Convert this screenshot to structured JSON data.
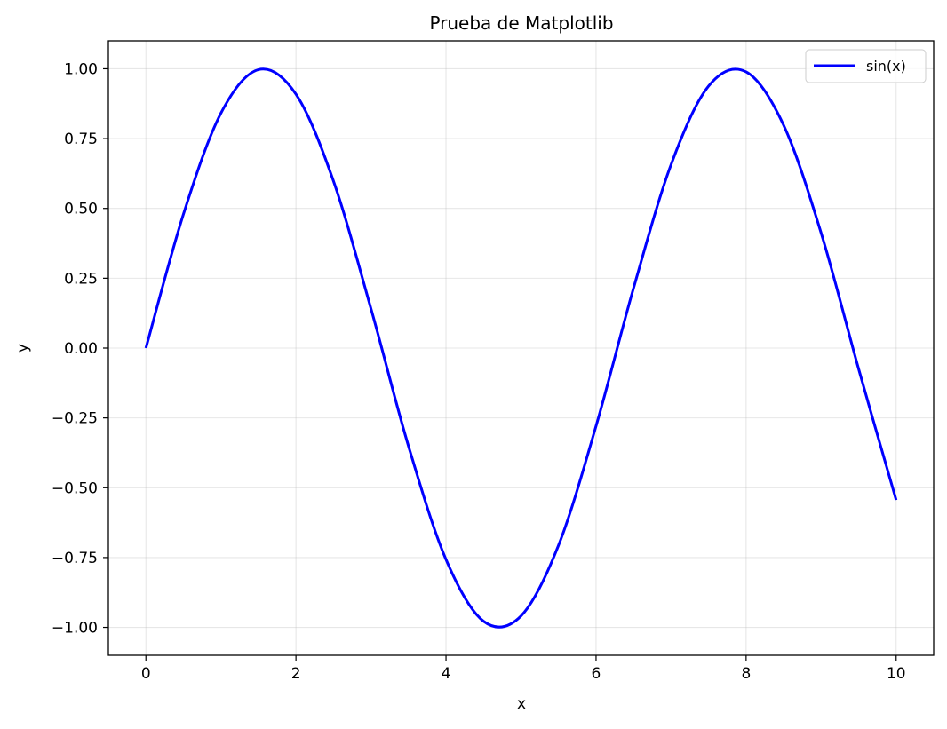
{
  "chart_data": {
    "type": "line",
    "title": "Prueba de Matplotlib",
    "xlabel": "x",
    "ylabel": "y",
    "xlim": [
      -0.5,
      10.5
    ],
    "ylim": [
      -1.1,
      1.1
    ],
    "grid": true,
    "legend": {
      "position": "top-right"
    },
    "x_ticks": [
      0,
      2,
      4,
      6,
      8,
      10
    ],
    "x_tick_labels": [
      "0",
      "2",
      "4",
      "6",
      "8",
      "10"
    ],
    "y_ticks": [
      1.0,
      0.75,
      0.5,
      0.25,
      0.0,
      -0.25,
      -0.5,
      -0.75,
      -1.0
    ],
    "y_tick_labels": [
      "1.00",
      "0.75",
      "0.50",
      "0.25",
      "0.00",
      "−0.25",
      "−0.50",
      "−0.75",
      "−1.00"
    ],
    "series": [
      {
        "name": "sin(x)",
        "color": "#0000ff",
        "x": [
          0,
          0.5,
          1,
          1.5,
          2,
          2.5,
          3,
          3.5,
          4,
          4.5,
          5,
          5.5,
          6,
          6.5,
          7,
          7.5,
          8,
          8.5,
          9,
          9.5,
          10
        ],
        "y": [
          0.0,
          0.479,
          0.841,
          0.997,
          0.909,
          0.598,
          0.141,
          -0.351,
          -0.757,
          -0.978,
          -0.959,
          -0.706,
          -0.279,
          0.215,
          0.657,
          0.938,
          0.989,
          0.798,
          0.412,
          -0.075,
          -0.544
        ]
      }
    ]
  }
}
